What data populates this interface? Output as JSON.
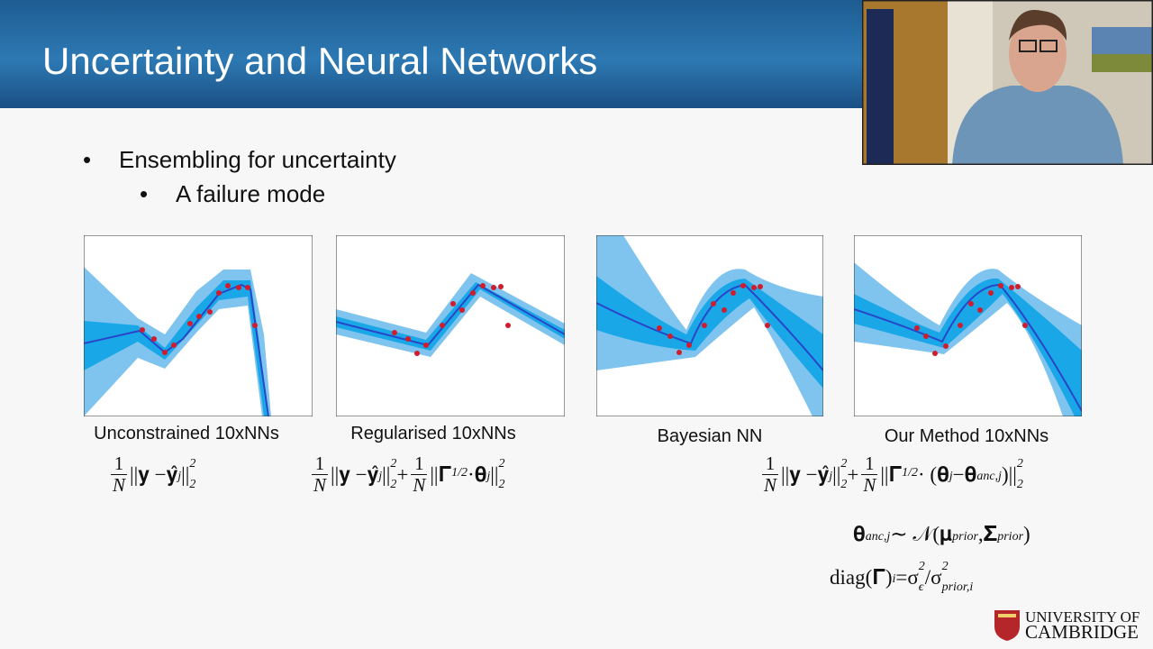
{
  "header": {
    "title": "Uncertainty and Neural Networks"
  },
  "bullets": [
    "Ensembling for uncertainty"
  ],
  "sub_bullets": [
    "A failure mode"
  ],
  "panels": [
    {
      "caption": "Unconstrained 10xNNs"
    },
    {
      "caption": "Regularised 10xNNs"
    },
    {
      "caption": "Bayesian NN"
    },
    {
      "caption": "Our Method 10xNNs"
    }
  ],
  "formulas": [
    [
      {
        "num": "1",
        "den": "N"
      },
      "||𝐲 − ",
      {
        "base": "𝐲̂",
        "sub": "j"
      },
      {
        "base": "||",
        "sub": "2",
        "sup": "2"
      }
    ],
    [
      {
        "num": "1",
        "den": "N"
      },
      "||𝐲 − ",
      {
        "base": "𝐲̂",
        "sub": "j"
      },
      {
        "base": "||",
        "sub": "2",
        "sup": "2"
      },
      " + ",
      {
        "num": "1",
        "den": "N"
      },
      {
        "base": "||𝚪",
        "sup": "1/2"
      },
      " · ",
      {
        "base": "𝛉",
        "sub": "j"
      },
      {
        "base": "||",
        "sub": "2",
        "sup": "2"
      }
    ],
    [
      {
        "num": "1",
        "den": "N"
      },
      "||𝐲 − ",
      {
        "base": "𝐲̂",
        "sub": "j"
      },
      {
        "base": "||",
        "sub": "2",
        "sup": "2"
      },
      " + ",
      {
        "num": "1",
        "den": "N"
      },
      {
        "base": "||𝚪",
        "sup": "1/2"
      },
      " · (",
      {
        "base": "𝛉",
        "sub": "j"
      },
      " − ",
      {
        "base": "𝛉",
        "sub": "anc,j"
      },
      {
        "base": ")||",
        "sub": "2",
        "sup": "2"
      }
    ],
    [
      {
        "base": "𝛉",
        "sub": "anc,j"
      },
      " ∼ 𝒩(",
      {
        "base": "𝛍",
        "sub": "prior"
      },
      ", ",
      {
        "base": "𝚺",
        "sub": "prior"
      },
      ")"
    ],
    [
      {
        "base": "diag(𝚪)",
        "sub": "i"
      },
      " = ",
      {
        "base": "σ",
        "sub": "ϵ",
        "sup": "2"
      },
      "/",
      {
        "base": "σ",
        "sub": "prior,i",
        "sup": "2"
      }
    ]
  ],
  "logo": {
    "line1": "UNIVERSITY OF",
    "line2": "CAMBRIDGE"
  }
}
